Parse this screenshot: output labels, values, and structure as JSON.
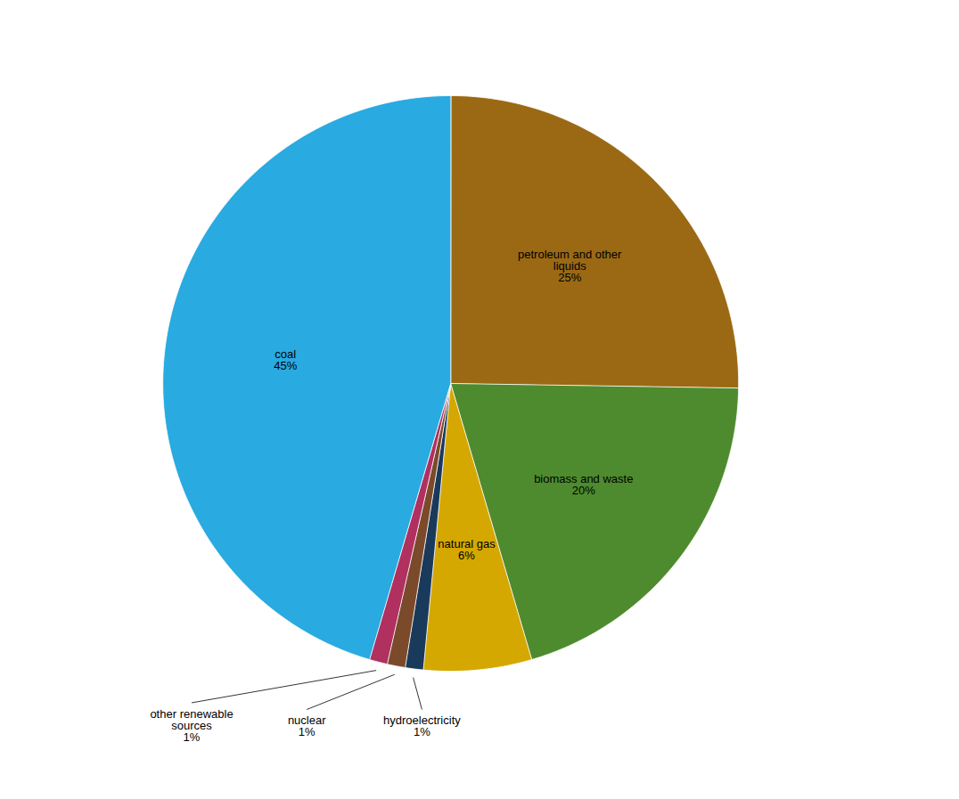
{
  "chart_data": {
    "type": "pie",
    "categories": [
      "petroleum and other\nliquids\n25%",
      "biomass and waste\n20%",
      "natural gas\n6%",
      "hydroelectricity\n1%",
      "nuclear\n1%",
      "other renewable\nsources\n1%",
      "coal\n45%"
    ],
    "values": [
      25,
      20,
      6,
      1,
      1,
      1,
      45
    ],
    "colors": [
      "#9b6914",
      "#4e8b2e",
      "#d4a800",
      "#1a3a5c",
      "#7a4a2a",
      "#b03060",
      "#29aae1"
    ]
  }
}
